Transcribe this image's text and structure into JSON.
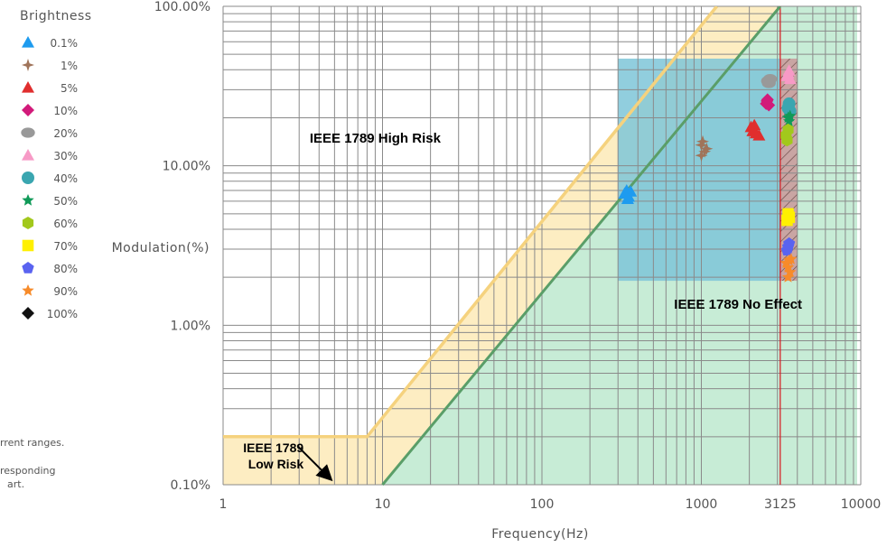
{
  "colors": {
    "high_band": "#fdedc2",
    "high_line": "#f5d27e",
    "low_region": "#c7ecd6",
    "low_line": "#5a9e68",
    "no_effect": "#7ec5d8",
    "grid": "#8a8a8a",
    "cutoff": "#d8141b",
    "cutoff_label": "#c8141b",
    "hatch_fill": "#c9a5a3"
  },
  "legend": {
    "title": "Brightness",
    "items": [
      {
        "label": "0.1%",
        "color": "#1e9bef",
        "icon": "triangle-icon"
      },
      {
        "label": "1%",
        "color": "#a0745a",
        "icon": "four-point-star-icon"
      },
      {
        "label": "5%",
        "color": "#e02e2e",
        "icon": "triangle-icon"
      },
      {
        "label": "10%",
        "color": "#d21a7a",
        "icon": "diamond-icon"
      },
      {
        "label": "20%",
        "color": "#999999",
        "icon": "ellipse-icon"
      },
      {
        "label": "30%",
        "color": "#f79ac6",
        "icon": "triangle-icon"
      },
      {
        "label": "40%",
        "color": "#3aa6b0",
        "icon": "circle-icon"
      },
      {
        "label": "50%",
        "color": "#109a58",
        "icon": "star-icon"
      },
      {
        "label": "60%",
        "color": "#a2c81c",
        "icon": "hexagon-icon"
      },
      {
        "label": "70%",
        "color": "#fff000",
        "icon": "square-icon"
      },
      {
        "label": "80%",
        "color": "#5a63f0",
        "icon": "pentagon-icon"
      },
      {
        "label": "90%",
        "color": "#f78b2a",
        "icon": "star-icon"
      },
      {
        "label": "100%",
        "color": "#111111",
        "icon": "diamond-icon"
      }
    ]
  },
  "notes": [
    "rrent ranges.",
    "responding",
    "art."
  ],
  "chart_data": {
    "type": "scatter",
    "xlabel": "Frequency(Hz)",
    "ylabel": "Modulation(%)",
    "x_scale": "log",
    "y_scale": "log",
    "xlim": [
      1,
      10000
    ],
    "ylim": [
      0.1,
      100
    ],
    "x_ticks": [
      {
        "value": 1,
        "label": "1"
      },
      {
        "value": 10,
        "label": "10"
      },
      {
        "value": 100,
        "label": "100"
      },
      {
        "value": 1000,
        "label": "1000"
      },
      {
        "value": 3125,
        "label": "3125",
        "highlight": true
      },
      {
        "value": 10000,
        "label": "10000"
      }
    ],
    "y_ticks": [
      {
        "value": 0.1,
        "label": "0.10%"
      },
      {
        "value": 1,
        "label": "1.00%"
      },
      {
        "value": 10,
        "label": "10.00%"
      },
      {
        "value": 100,
        "label": "100.00%"
      }
    ],
    "grid": true,
    "reference_line_x": 3125,
    "regions": [
      {
        "label": "IEEE 1789 High Risk",
        "label_at": [
          9,
          14
        ]
      },
      {
        "label": "IEEE 1789 No Effect",
        "label_at": [
          1700,
          1.27
        ]
      },
      {
        "label": "IEEE 1789\nLow Risk",
        "label_at": [
          3.2,
          0.16
        ]
      }
    ],
    "high_risk_boundary": {
      "points": [
        [
          1,
          0.2
        ],
        [
          8,
          0.2
        ],
        [
          1250,
          100
        ]
      ]
    },
    "low_risk_boundary": {
      "points": [
        [
          10,
          0.1
        ],
        [
          3125,
          100
        ]
      ]
    },
    "no_effect_box": {
      "x": [
        300,
        3125
      ],
      "y": [
        1.9,
        47
      ]
    },
    "hatched_box": {
      "x": [
        3125,
        4000
      ],
      "y": [
        1.9,
        47
      ]
    },
    "series": [
      {
        "name": "0.1%",
        "points": [
          [
            330,
            6.7
          ],
          [
            350,
            6.4
          ],
          [
            340,
            7.0
          ],
          [
            360,
            6.9
          ],
          [
            345,
            6.2
          ]
        ]
      },
      {
        "name": "1%",
        "points": [
          [
            1000,
            13.5
          ],
          [
            1050,
            12.3
          ],
          [
            1000,
            11.6
          ],
          [
            1020,
            14.2
          ],
          [
            1080,
            12.8
          ]
        ]
      },
      {
        "name": "5%",
        "points": [
          [
            2050,
            17.5
          ],
          [
            2200,
            16.0
          ],
          [
            2150,
            18.0
          ],
          [
            2300,
            15.5
          ],
          [
            2100,
            16.5
          ]
        ]
      },
      {
        "name": "10%",
        "points": [
          [
            2550,
            24.5
          ],
          [
            2600,
            26.0
          ],
          [
            2650,
            24.0
          ],
          [
            2580,
            25.5
          ]
        ]
      },
      {
        "name": "20%",
        "points": [
          [
            2650,
            33.0
          ],
          [
            2700,
            35.0
          ],
          [
            2620,
            34.0
          ]
        ]
      },
      {
        "name": "30%",
        "points": [
          [
            3500,
            38.0
          ],
          [
            3600,
            35.0
          ],
          [
            3450,
            36.5
          ],
          [
            3550,
            39.5
          ]
        ]
      },
      {
        "name": "40%",
        "points": [
          [
            3550,
            24.5
          ],
          [
            3500,
            23.0
          ],
          [
            3600,
            22.0
          ]
        ]
      },
      {
        "name": "50%",
        "points": [
          [
            3500,
            20.0
          ],
          [
            3550,
            19.0
          ],
          [
            3600,
            20.5
          ]
        ]
      },
      {
        "name": "60%",
        "points": [
          [
            3400,
            15.5
          ],
          [
            3500,
            16.8
          ],
          [
            3450,
            14.5
          ]
        ]
      },
      {
        "name": "70%",
        "points": [
          [
            3500,
            5.0
          ],
          [
            3560,
            4.75
          ],
          [
            3450,
            4.55
          ]
        ]
      },
      {
        "name": "80%",
        "points": [
          [
            3500,
            3.1
          ],
          [
            3450,
            2.95
          ],
          [
            3550,
            3.25
          ]
        ]
      },
      {
        "name": "90%",
        "points": [
          [
            3400,
            2.45
          ],
          [
            3500,
            2.3
          ],
          [
            3550,
            2.55
          ],
          [
            3600,
            2.15
          ],
          [
            3650,
            2.6
          ],
          [
            3500,
            2.0
          ]
        ]
      },
      {
        "name": "100%",
        "points": []
      }
    ]
  }
}
